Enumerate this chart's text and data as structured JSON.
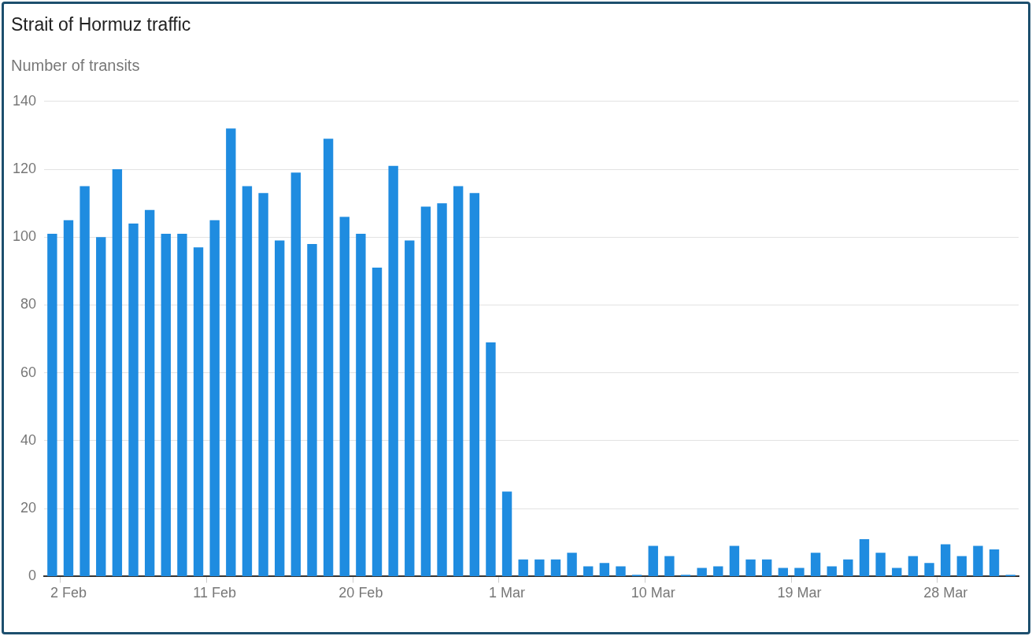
{
  "chart_data": {
    "type": "bar",
    "title": "Strait of Hormuz traffic",
    "ylabel": "Number of transits",
    "categories": [
      null,
      "2 Feb",
      null,
      null,
      null,
      null,
      null,
      null,
      null,
      null,
      "11 Feb",
      null,
      null,
      null,
      null,
      null,
      null,
      null,
      null,
      "20 Feb",
      null,
      null,
      null,
      null,
      null,
      null,
      null,
      null,
      "1 Mar",
      null,
      null,
      null,
      null,
      null,
      null,
      null,
      null,
      "10 Mar",
      null,
      null,
      null,
      null,
      null,
      null,
      null,
      null,
      "19 Mar",
      null,
      null,
      null,
      null,
      null,
      null,
      null,
      null,
      "28 Mar",
      null,
      null,
      null,
      null
    ],
    "values": [
      101,
      105,
      115,
      100,
      120,
      104,
      108,
      101,
      101,
      97,
      105,
      132,
      115,
      113,
      99,
      119,
      98,
      129,
      106,
      101,
      91,
      121,
      99,
      109,
      110,
      115,
      113,
      69,
      25,
      5,
      5,
      5,
      7,
      3,
      4,
      3,
      0.5,
      9,
      6,
      0.5,
      2.5,
      3,
      9,
      5,
      5,
      2.5,
      2.5,
      7,
      3,
      5,
      11,
      7,
      2.5,
      6,
      4,
      9.5,
      6,
      9,
      8,
      0.5
    ],
    "color": "#1f8ce0",
    "ylim": [
      0,
      140
    ],
    "yticks": [
      0,
      20,
      40,
      60,
      80,
      100,
      120,
      140
    ],
    "grid": "y"
  }
}
